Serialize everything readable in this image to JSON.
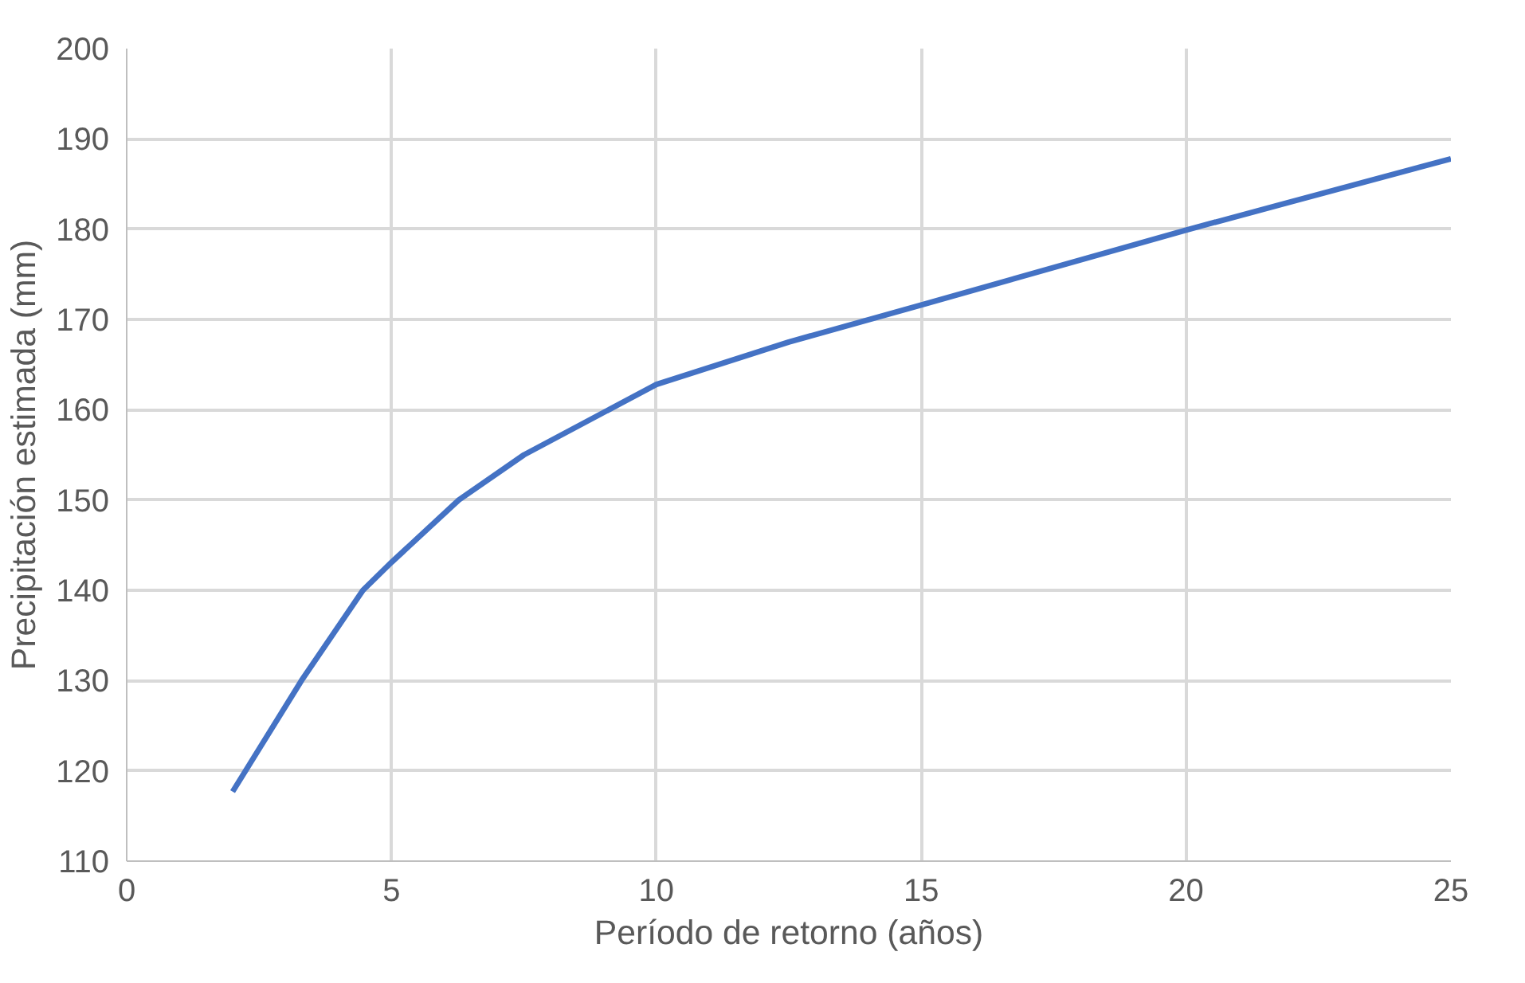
{
  "chart_data": {
    "type": "line",
    "xlabel": "Período de retorno (años)",
    "ylabel": "Precipitación estimada (mm)",
    "x": [
      2,
      3.3,
      4.46,
      5,
      6.27,
      7.5,
      10,
      12.5,
      15,
      20,
      25
    ],
    "series": [
      {
        "color": "#4472c4",
        "values": [
          117.7,
          130,
          140,
          143.1,
          150,
          155,
          162.8,
          167.5,
          171.6,
          179.9,
          187.8
        ]
      }
    ],
    "xlim": [
      0,
      25
    ],
    "xticks": [
      0,
      5,
      10,
      15,
      20,
      25
    ],
    "ylim": [
      110,
      200
    ],
    "yticks": [
      110,
      120,
      130,
      140,
      150,
      160,
      170,
      180,
      190,
      200
    ],
    "grid": true,
    "marker": "none",
    "line_style": "solid"
  }
}
